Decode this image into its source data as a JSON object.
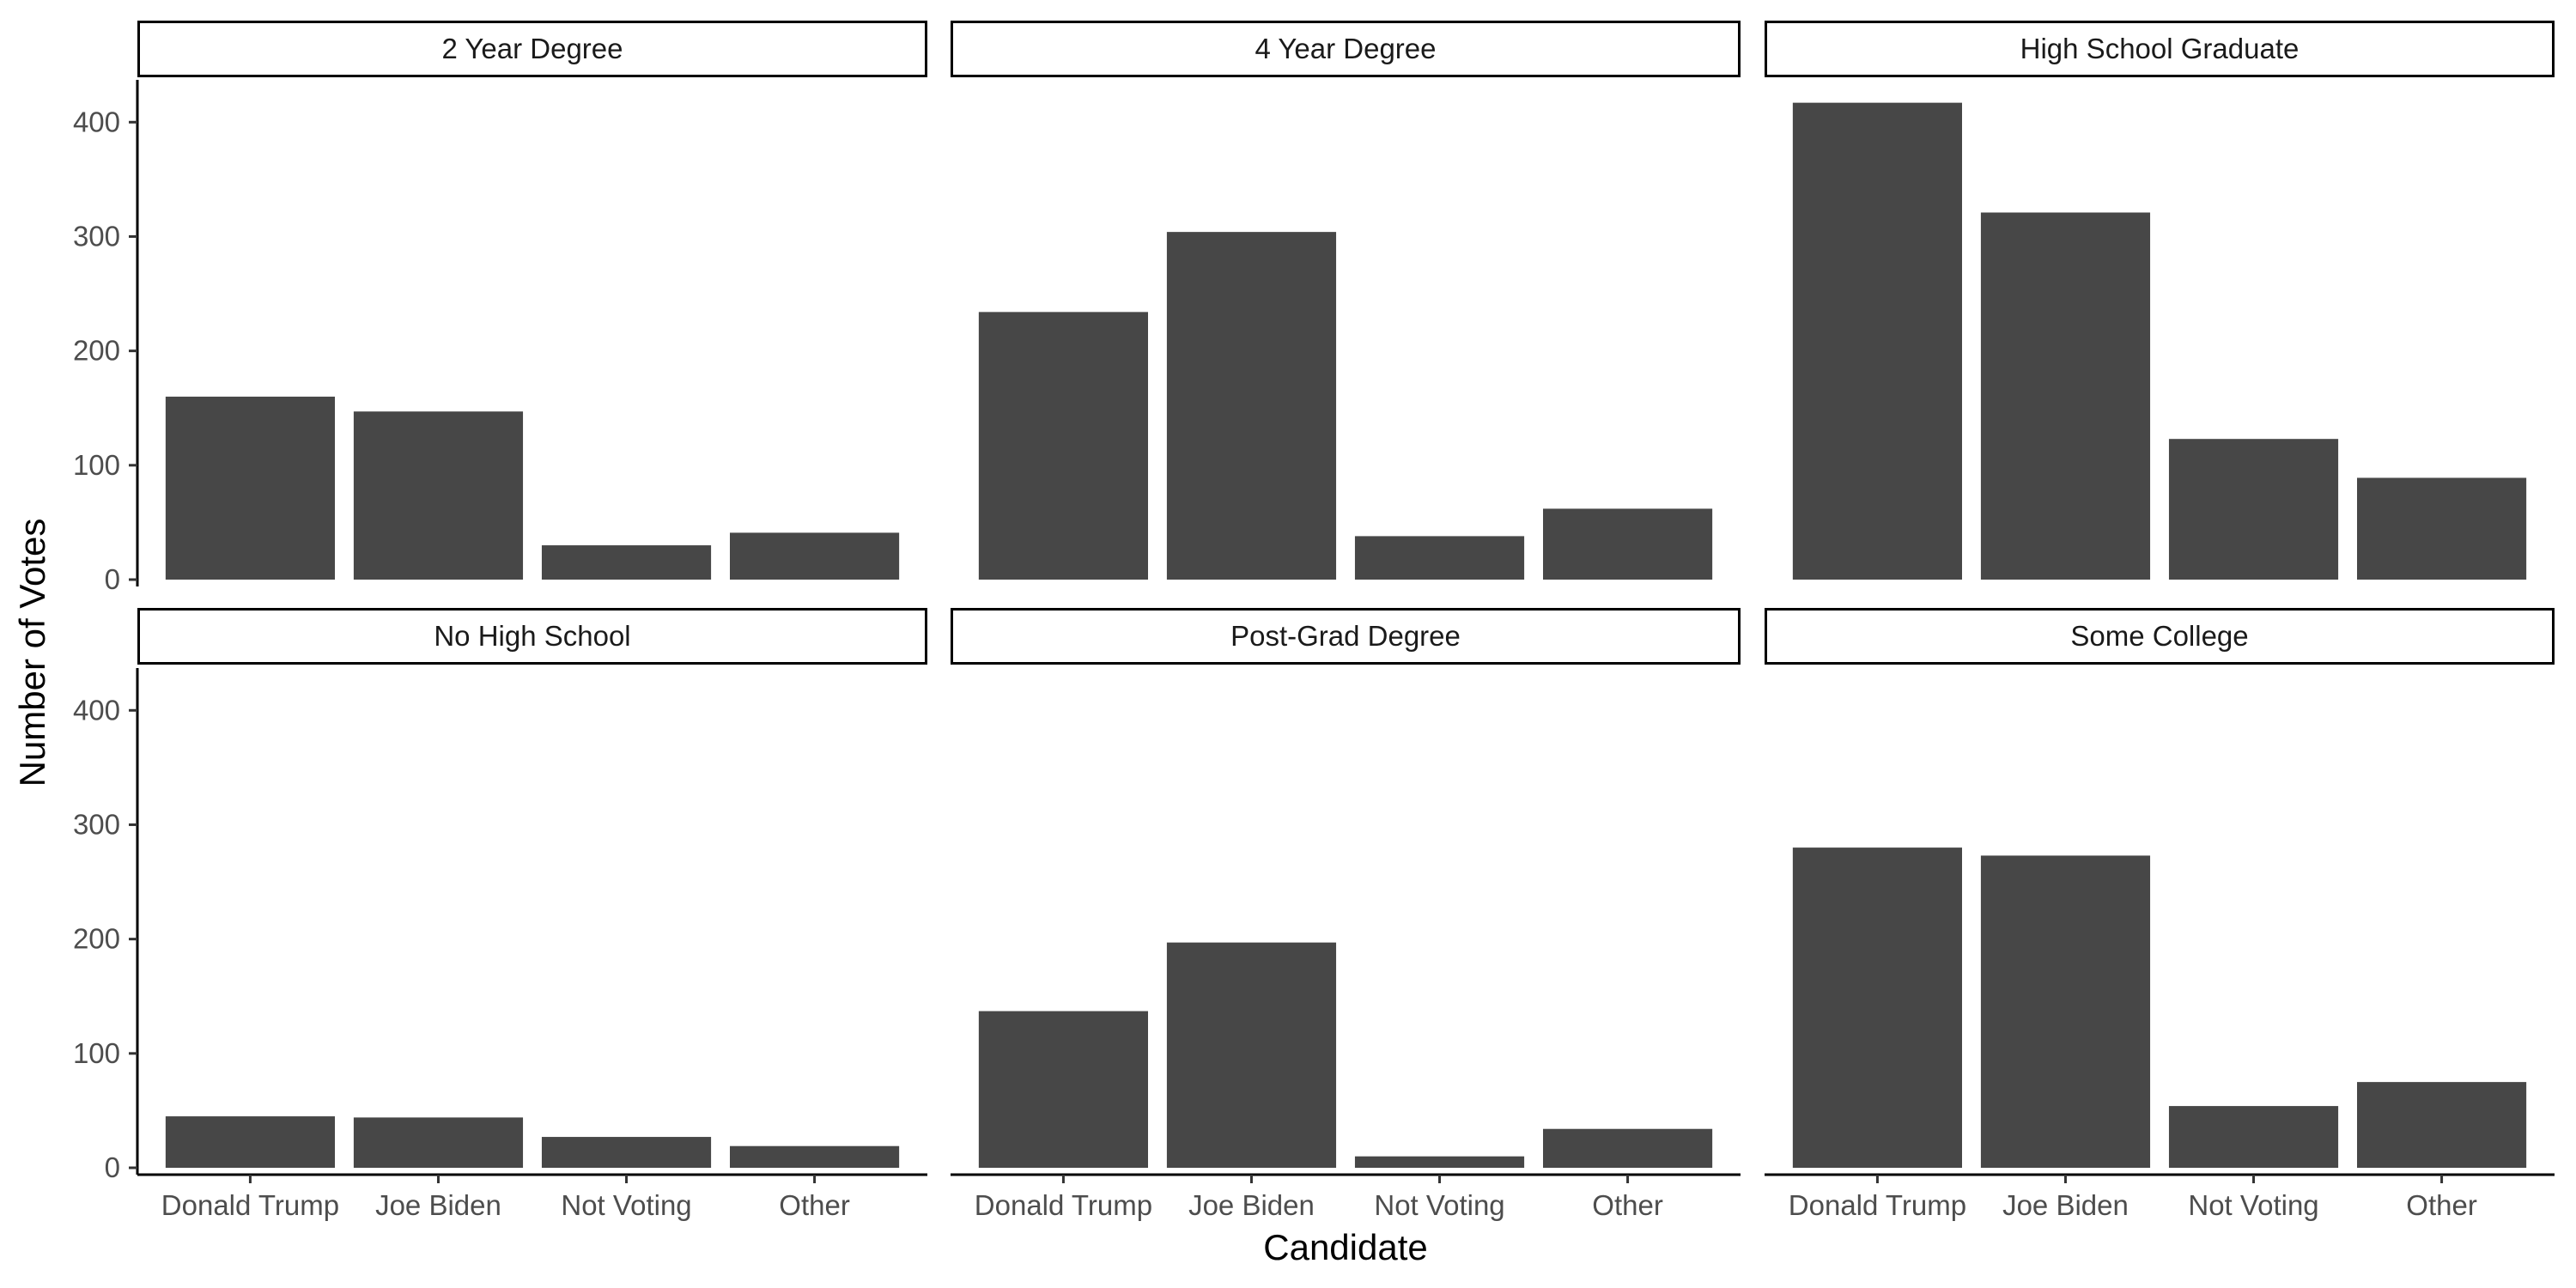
{
  "chart_data": {
    "type": "bar",
    "title": "",
    "xlabel": "Candidate",
    "ylabel": "Number of Votes",
    "categories": [
      "Donald Trump",
      "Joe Biden",
      "Not Voting",
      "Other"
    ],
    "ylim": [
      -6,
      437
    ],
    "yticks": [
      0,
      100,
      200,
      300,
      400
    ],
    "grid": false,
    "legend": "none",
    "facets": [
      {
        "name": "2 Year Degree",
        "values": [
          160,
          147,
          30,
          41
        ]
      },
      {
        "name": "4 Year Degree",
        "values": [
          234,
          304,
          38,
          62
        ]
      },
      {
        "name": "High School Graduate",
        "values": [
          417,
          321,
          123,
          89
        ]
      },
      {
        "name": "No High School",
        "values": [
          45,
          44,
          27,
          19
        ]
      },
      {
        "name": "Post-Grad Degree",
        "values": [
          137,
          197,
          10,
          34
        ]
      },
      {
        "name": "Some College",
        "values": [
          280,
          273,
          54,
          75
        ]
      }
    ]
  },
  "colors": {
    "bar": "#474747",
    "strip_border": "#000000",
    "axis": "#000000",
    "tick_text": "#4d4d4d"
  }
}
